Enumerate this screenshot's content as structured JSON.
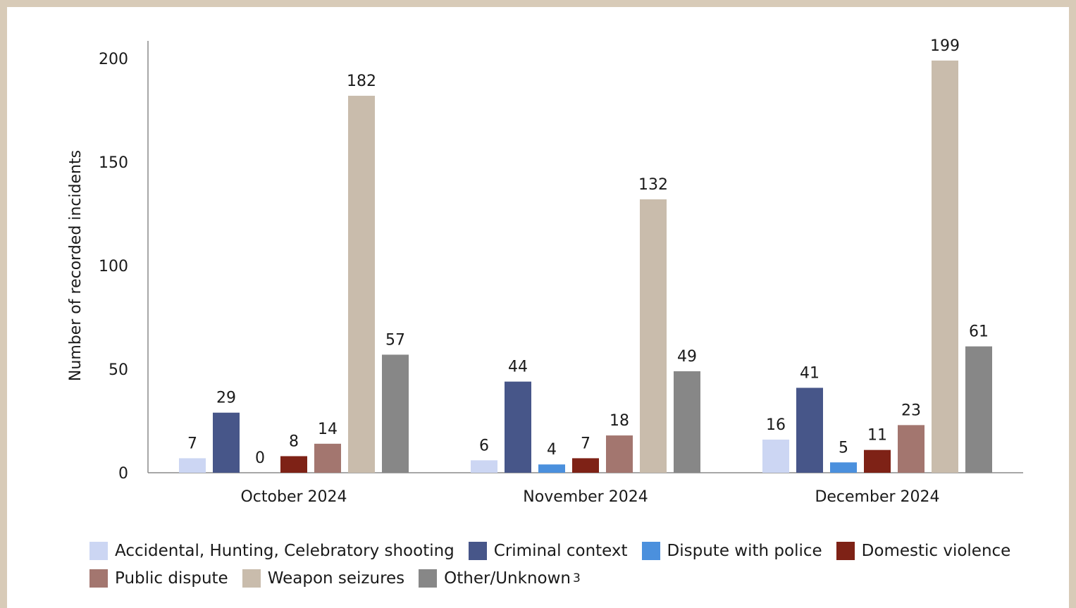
{
  "chart_data": {
    "type": "bar",
    "title": "",
    "xlabel": "",
    "ylabel": "Number of recorded incidents",
    "ylim": [
      0,
      200
    ],
    "yticks": [
      0,
      50,
      100,
      150,
      200
    ],
    "grid": false,
    "legend_position": "bottom",
    "categories": [
      "October 2024",
      "November 2024",
      "December 2024"
    ],
    "series": [
      {
        "name": "Accidental, Hunting, Celebratory shooting",
        "color": "#ccd6f3",
        "values": [
          7,
          6,
          16
        ]
      },
      {
        "name": "Criminal context",
        "color": "#475689",
        "values": [
          29,
          44,
          41
        ]
      },
      {
        "name": "Dispute with police",
        "color": "#4b90dd",
        "values": [
          0,
          4,
          5
        ]
      },
      {
        "name": "Domestic violence",
        "color": "#7e2216",
        "values": [
          8,
          7,
          11
        ]
      },
      {
        "name": "Public dispute",
        "color": "#a3766f",
        "values": [
          14,
          18,
          23
        ]
      },
      {
        "name": "Weapon seizures",
        "color": "#c9bcac",
        "values": [
          182,
          132,
          199
        ]
      },
      {
        "name": "Other/Unknown",
        "color": "#878787",
        "values": [
          57,
          49,
          61
        ],
        "footnote": "3"
      }
    ]
  },
  "frame_color": "#d8cbb8"
}
